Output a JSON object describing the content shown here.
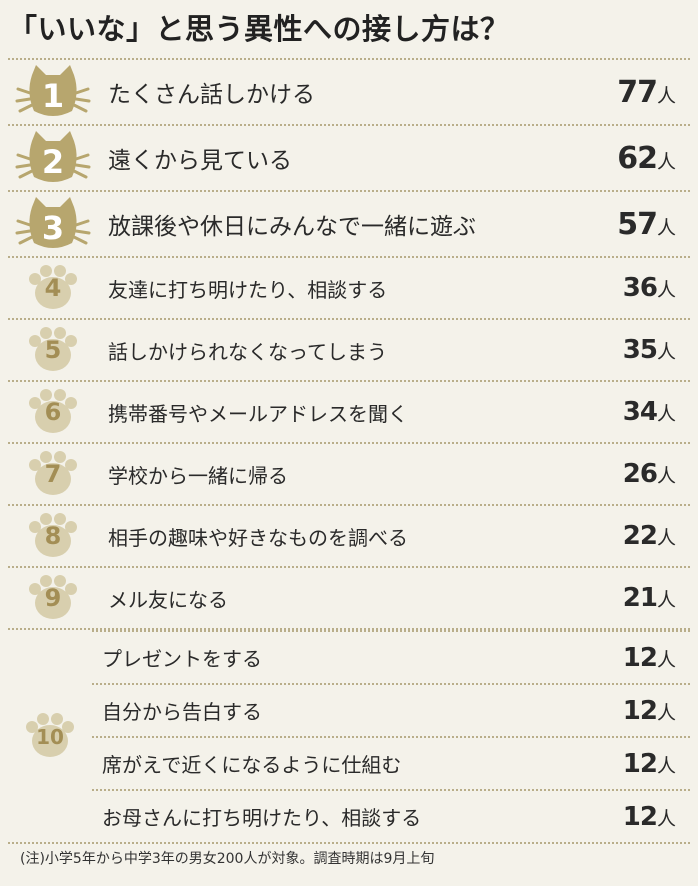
{
  "title": "「いいな」と思う異性への接し方は？",
  "colors": {
    "cat": "#b7a66e",
    "paw": "#d8cfae",
    "paw_number": "#a38e55",
    "background": "#f4f2ea"
  },
  "unit": "人",
  "top": [
    {
      "rank": "1",
      "label": "たくさん話しかける",
      "count": "77"
    },
    {
      "rank": "2",
      "label": "遠くから見ている",
      "count": "62"
    },
    {
      "rank": "3",
      "label": "放課後や休日にみんなで一緒に遊ぶ",
      "count": "57"
    }
  ],
  "mid": [
    {
      "rank": "4",
      "label": "友達に打ち明けたり、相談する",
      "count": "36"
    },
    {
      "rank": "5",
      "label": "話しかけられなくなってしまう",
      "count": "35"
    },
    {
      "rank": "6",
      "label": "携帯番号やメールアドレスを聞く",
      "count": "34"
    },
    {
      "rank": "7",
      "label": "学校から一緒に帰る",
      "count": "26"
    },
    {
      "rank": "8",
      "label": "相手の趣味や好きなものを調べる",
      "count": "22"
    },
    {
      "rank": "9",
      "label": "メル友になる",
      "count": "21"
    }
  ],
  "tenth": {
    "rank": "10",
    "items": [
      {
        "label": "プレゼントをする",
        "count": "12"
      },
      {
        "label": "自分から告白する",
        "count": "12"
      },
      {
        "label": "席がえで近くになるように仕組む",
        "count": "12"
      },
      {
        "label": "お母さんに打ち明けたり、相談する",
        "count": "12"
      }
    ]
  },
  "note": "(注)小学5年から中学3年の男女200人が対象。調査時期は9月上旬"
}
